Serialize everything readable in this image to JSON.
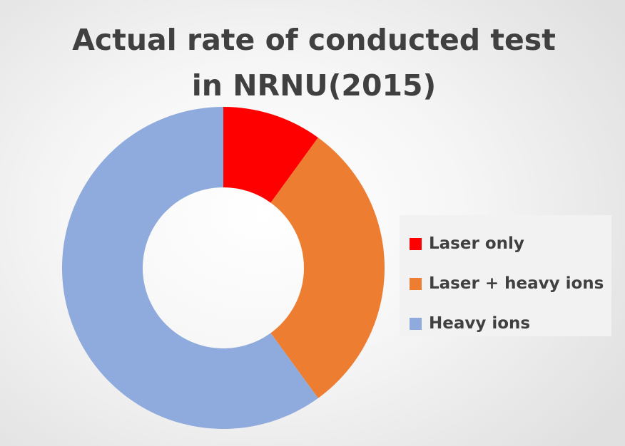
{
  "chart_data": {
    "type": "pie",
    "variant": "donut",
    "title": [
      "Actual rate of conducted test",
      "in NRNU(2015)"
    ],
    "series": [
      {
        "name": "Laser only",
        "value": 10,
        "color": "#ff0000"
      },
      {
        "name": "Laser + heavy ions",
        "value": 30,
        "color": "#ed7d31"
      },
      {
        "name": "Heavy ions",
        "value": 60,
        "color": "#8faadc"
      }
    ],
    "legend_position": "right"
  }
}
